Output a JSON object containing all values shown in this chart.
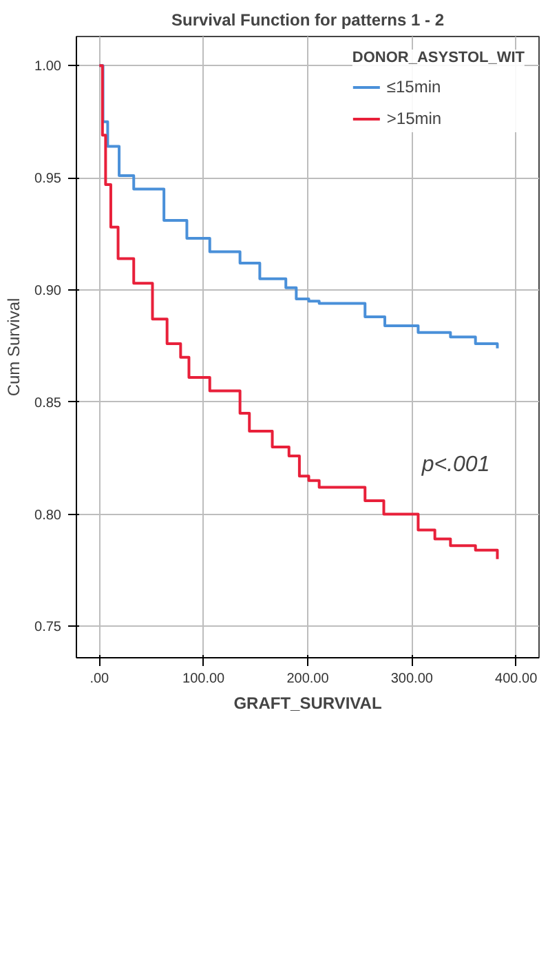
{
  "chart_data": {
    "type": "step",
    "title": "Survival Function for patterns 1 - 2",
    "xlabel": "GRAFT_SURVIVAL",
    "ylabel": "Cum Survival",
    "legend_title": "DONOR_ASYSTOL_WIT",
    "annotations": [
      "p<.001"
    ],
    "series": [
      {
        "name": "≤15min",
        "color": "#4a90d9",
        "x": [
          0,
          3.5,
          8,
          19,
          33,
          62,
          84,
          106,
          135,
          154,
          179,
          189,
          201,
          211,
          255,
          274,
          306,
          337,
          361,
          382
        ],
        "values": [
          1.0,
          0.975,
          0.964,
          0.951,
          0.945,
          0.931,
          0.923,
          0.917,
          0.912,
          0.905,
          0.901,
          0.896,
          0.895,
          0.894,
          0.888,
          0.884,
          0.881,
          0.879,
          0.876,
          0.874
        ]
      },
      {
        "name": ">15min",
        "color": "#e8203a",
        "x": [
          0,
          3,
          6,
          11,
          18,
          33,
          51,
          65,
          78,
          86,
          106,
          135,
          144,
          166,
          182,
          192,
          201,
          211,
          255,
          273,
          306,
          322,
          337,
          361,
          382
        ],
        "values": [
          1.0,
          0.969,
          0.947,
          0.928,
          0.914,
          0.903,
          0.887,
          0.876,
          0.87,
          0.861,
          0.855,
          0.845,
          0.837,
          0.83,
          0.826,
          0.817,
          0.815,
          0.812,
          0.806,
          0.8,
          0.793,
          0.789,
          0.786,
          0.784,
          0.78
        ]
      }
    ],
    "xlim": [
      -22,
      422
    ],
    "ylim": [
      0.736,
      1.013
    ],
    "xticks": [
      {
        "value": 0,
        "label": ".00"
      },
      {
        "value": 100,
        "label": "100.00"
      },
      {
        "value": 200,
        "label": "200.00"
      },
      {
        "value": 300,
        "label": "300.00"
      },
      {
        "value": 400,
        "label": "400.00"
      }
    ],
    "yticks": [
      {
        "value": 0.75,
        "label": "0.75"
      },
      {
        "value": 0.8,
        "label": "0.80"
      },
      {
        "value": 0.85,
        "label": "0.85"
      },
      {
        "value": 0.9,
        "label": "0.90"
      },
      {
        "value": 0.95,
        "label": "0.95"
      },
      {
        "value": 1.0,
        "label": "1.00"
      }
    ],
    "grid": true,
    "legend": "top right",
    "line_style": "solid"
  }
}
